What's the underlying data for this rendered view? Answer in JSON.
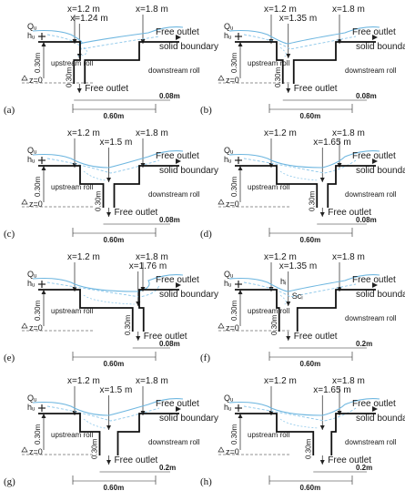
{
  "panels": [
    {
      "label": "(a)",
      "x_mid": "x=1.24 m",
      "rolls": {
        "up": "upstream roll",
        "down": "downstream roll"
      },
      "slot": "0.08m",
      "labels": {
        "hn": "",
        "sc": ""
      }
    },
    {
      "label": "(b)",
      "x_mid": "x=1.35 m",
      "rolls": {
        "up": "upstream roll",
        "down": "downstream roll"
      },
      "slot": "0.08m",
      "labels": {
        "hn": "",
        "sc": ""
      }
    },
    {
      "label": "(c)",
      "x_mid": "x=1.5 m",
      "rolls": {
        "up": "upstream roll",
        "down": "downstream roll"
      },
      "slot": "0.08m",
      "labels": {
        "hn": "",
        "sc": ""
      }
    },
    {
      "label": "(d)",
      "x_mid": "x=1.65 m",
      "rolls": {
        "up": "upstream roll",
        "down": "downstream roll"
      },
      "slot": "0.08m",
      "labels": {
        "hn": "",
        "sc": ""
      }
    },
    {
      "label": "(e)",
      "x_mid": "x=1.76 m",
      "rolls": {
        "up": "upstream roll",
        "down": ""
      },
      "slot": "0.08m",
      "labels": {
        "hn": "",
        "sc": ""
      }
    },
    {
      "label": "(f)",
      "x_mid": "x=1.35 m",
      "rolls": {
        "up": "upstream roll",
        "down": "downstream roll"
      },
      "slot": "0.2m",
      "labels": {
        "hn": "hᵢ",
        "sc": "Scᵢ"
      }
    },
    {
      "label": "(g)",
      "x_mid": "x=1.5 m",
      "rolls": {
        "up": "upstream roll",
        "down": "downstream roll"
      },
      "slot": "0.2m",
      "labels": {
        "hn": "",
        "sc": ""
      }
    },
    {
      "label": "(h)",
      "x_mid": "x=1.65 m",
      "rolls": {
        "up": "upstream roll",
        "down": "downstream roll"
      },
      "slot": "0.2m",
      "labels": {
        "hn": "",
        "sc": ""
      }
    }
  ],
  "common": {
    "x1": "x=1.2 m",
    "x2": "x=1.8 m",
    "free_outlet": "Free outlet",
    "solid_boundary": "solid boundary",
    "q": "Qᵤ",
    "h": "hᵤ",
    "dim_030": "0.30m",
    "dim_060": "0.60m",
    "z0": "z=0"
  },
  "colors": {
    "wall": "#111111",
    "water": "#6fb7e0",
    "water_dash": "#8cc7ea",
    "dim": "#222222"
  }
}
